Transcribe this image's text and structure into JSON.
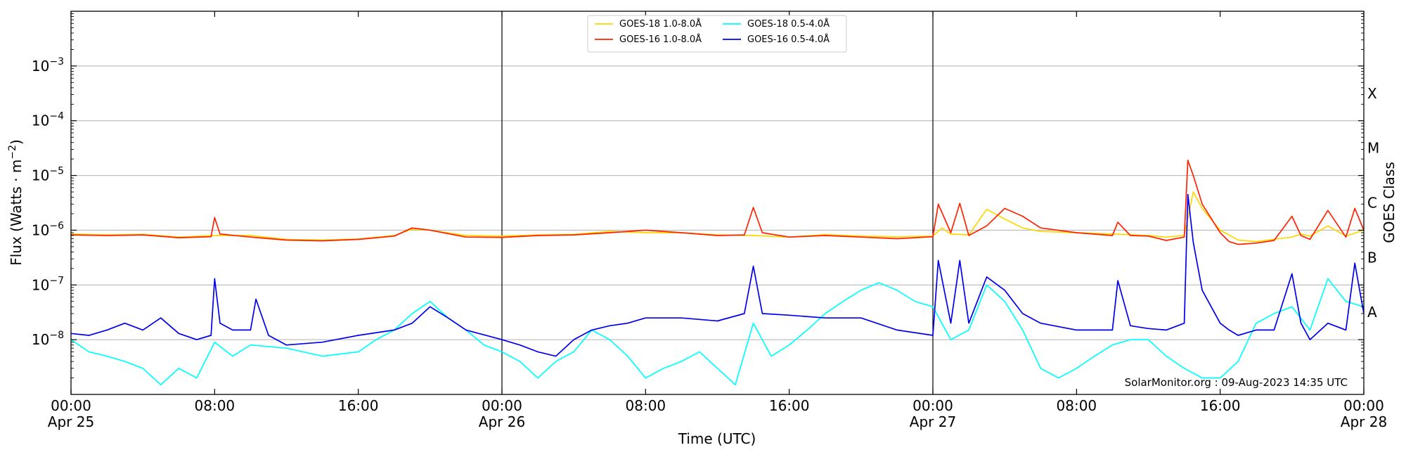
{
  "chart_data": {
    "type": "line",
    "xlabel": "Time (UTC)",
    "ylabel": "Flux (Watts · m",
    "ylabel_sup": "−2",
    "ylabel_close": ")",
    "y2label": "GOES Class",
    "xlim_hours": [
      0,
      72
    ],
    "ylim": [
      1e-09,
      0.01
    ],
    "yscale": "log",
    "y_ticks": [
      {
        "value": 1e-08,
        "base": "10",
        "exp": "−8"
      },
      {
        "value": 1e-07,
        "base": "10",
        "exp": "−7"
      },
      {
        "value": 1e-06,
        "base": "10",
        "exp": "−6"
      },
      {
        "value": 1e-05,
        "base": "10",
        "exp": "−5"
      },
      {
        "value": 0.0001,
        "base": "10",
        "exp": "−4"
      },
      {
        "value": 0.001,
        "base": "10",
        "exp": "−3"
      }
    ],
    "x_ticks": [
      {
        "hour": 0,
        "line1": "00:00",
        "line2": "Apr 25"
      },
      {
        "hour": 8,
        "line1": "08:00",
        "line2": ""
      },
      {
        "hour": 16,
        "line1": "16:00",
        "line2": ""
      },
      {
        "hour": 24,
        "line1": "00:00",
        "line2": "Apr 26"
      },
      {
        "hour": 32,
        "line1": "08:00",
        "line2": ""
      },
      {
        "hour": 40,
        "line1": "16:00",
        "line2": ""
      },
      {
        "hour": 48,
        "line1": "00:00",
        "line2": "Apr 27"
      },
      {
        "hour": 56,
        "line1": "08:00",
        "line2": ""
      },
      {
        "hour": 64,
        "line1": "16:00",
        "line2": ""
      },
      {
        "hour": 72,
        "line1": "00:00",
        "line2": "Apr 28"
      }
    ],
    "day_boundaries_hours": [
      24,
      48
    ],
    "goes_classes": [
      {
        "label": "A",
        "flux": 3.16e-08
      },
      {
        "label": "B",
        "flux": 3.16e-07
      },
      {
        "label": "C",
        "flux": 3.16e-06
      },
      {
        "label": "M",
        "flux": 3.16e-05
      },
      {
        "label": "X",
        "flux": 0.000316
      }
    ],
    "grid": "horizontal at decades",
    "legend_placement": "top-center",
    "annotation": "SolarMonitor.org : 09-Aug-2023 14:35 UTC",
    "series": [
      {
        "name": "GOES-18 1.0-8.0Å",
        "color": "#FFD700",
        "x": [
          0,
          2,
          4,
          6,
          8,
          10,
          12,
          14,
          16,
          18,
          19,
          20,
          22,
          24,
          26,
          28,
          30,
          32,
          34,
          36,
          38,
          40,
          42,
          44,
          46,
          48,
          48.5,
          49,
          50,
          51,
          52,
          53,
          54,
          56,
          58,
          60,
          61,
          62,
          62.5,
          63,
          64,
          65,
          66,
          68,
          68.5,
          69,
          70,
          71,
          72
        ],
        "y": [
          8.5e-07,
          8.2e-07,
          8.4e-07,
          7.5e-07,
          8e-07,
          8e-07,
          6.8e-07,
          6.6e-07,
          6.9e-07,
          8e-07,
          1.05e-06,
          1e-06,
          8e-07,
          7.8e-07,
          8.2e-07,
          8.4e-07,
          9.5e-07,
          9e-07,
          9e-07,
          8.2e-07,
          8e-07,
          7.5e-07,
          8.3e-07,
          7.8e-07,
          7.6e-07,
          7.8e-07,
          1.1e-06,
          8.5e-07,
          8.2e-07,
          2.4e-06,
          1.6e-06,
          1.1e-06,
          9.5e-07,
          9e-07,
          8.5e-07,
          8e-07,
          7.5e-07,
          8e-07,
          5e-06,
          2.5e-06,
          1e-06,
          6.6e-07,
          6.2e-07,
          7.5e-07,
          8.5e-07,
          7.8e-07,
          1.2e-06,
          7.8e-07,
          1e-06
        ]
      },
      {
        "name": "GOES-16 1.0-8.0Å",
        "color": "#FF2200",
        "x": [
          0,
          2,
          4,
          6,
          7.8,
          8,
          8.3,
          10,
          12,
          14,
          16,
          18,
          19,
          20,
          22,
          24,
          26,
          28,
          30,
          32,
          34,
          36,
          37.5,
          38,
          38.5,
          40,
          42,
          44,
          46,
          48,
          48.3,
          49,
          49.5,
          50,
          51,
          52,
          53,
          54,
          56,
          58,
          58.3,
          59,
          60,
          61,
          62,
          62.2,
          62.5,
          63,
          64,
          64.5,
          65,
          66,
          67,
          68,
          68.5,
          69,
          70,
          71,
          71.5,
          72
        ],
        "y": [
          8.2e-07,
          8e-07,
          8.2e-07,
          7.3e-07,
          7.6e-07,
          1.7e-06,
          8.5e-07,
          7.5e-07,
          6.6e-07,
          6.4e-07,
          6.8e-07,
          7.8e-07,
          1.1e-06,
          1e-06,
          7.5e-07,
          7.4e-07,
          8e-07,
          8.2e-07,
          9e-07,
          1e-06,
          9e-07,
          8e-07,
          8.2e-07,
          2.6e-06,
          9e-07,
          7.5e-07,
          8e-07,
          7.5e-07,
          7e-07,
          7.6e-07,
          3e-06,
          9e-07,
          3.1e-06,
          8e-07,
          1.2e-06,
          2.5e-06,
          1.8e-06,
          1.1e-06,
          9e-07,
          8e-07,
          1.4e-06,
          8e-07,
          7.8e-07,
          6.5e-07,
          7.5e-07,
          1.9e-05,
          1e-05,
          3e-06,
          9e-07,
          6.2e-07,
          5.5e-07,
          5.8e-07,
          6.5e-07,
          1.8e-06,
          8e-07,
          6.8e-07,
          2.3e-06,
          7.5e-07,
          2.5e-06,
          1e-06
        ]
      },
      {
        "name": "GOES-18 0.5-4.0Å",
        "color": "#00FFFF",
        "x": [
          0,
          1,
          2,
          3,
          4,
          5,
          6,
          7,
          8,
          9,
          10,
          12,
          14,
          16,
          17,
          18,
          19,
          20,
          21,
          22,
          23,
          24,
          25,
          26,
          27,
          28,
          29,
          30,
          31,
          32,
          33,
          34,
          35,
          36,
          37,
          38,
          39,
          40,
          41,
          42,
          43,
          44,
          45,
          46,
          47,
          48,
          49,
          50,
          51,
          52,
          53,
          54,
          55,
          56,
          57,
          58,
          59,
          60,
          61,
          62,
          63,
          64,
          65,
          66,
          67,
          68,
          69,
          70,
          71,
          72
        ],
        "y": [
          1e-08,
          6e-09,
          5e-09,
          4e-09,
          3e-09,
          1.5e-09,
          3e-09,
          2e-09,
          9e-09,
          5e-09,
          8e-09,
          7e-09,
          5e-09,
          6e-09,
          1e-08,
          1.5e-08,
          3e-08,
          5e-08,
          2.5e-08,
          1.5e-08,
          8e-09,
          6e-09,
          4e-09,
          2e-09,
          4e-09,
          6e-09,
          1.5e-08,
          1e-08,
          5e-09,
          2e-09,
          3e-09,
          4e-09,
          6e-09,
          3e-09,
          1.5e-09,
          2e-08,
          5e-09,
          8e-09,
          1.5e-08,
          3e-08,
          5e-08,
          8e-08,
          1.1e-07,
          8e-08,
          5e-08,
          4e-08,
          1e-08,
          1.5e-08,
          1e-07,
          5e-08,
          1.5e-08,
          3e-09,
          2e-09,
          3e-09,
          5e-09,
          8e-09,
          1e-08,
          1e-08,
          5e-09,
          3e-09,
          2e-09,
          2e-09,
          4e-09,
          2e-08,
          3e-08,
          4e-08,
          1.5e-08,
          1.3e-07,
          5e-08,
          4e-08
        ]
      },
      {
        "name": "GOES-16 0.5-4.0Å",
        "color": "#0000EE",
        "x": [
          0,
          1,
          2,
          3,
          4,
          5,
          6,
          7,
          7.8,
          8,
          8.3,
          9,
          10,
          10.3,
          11,
          12,
          14,
          16,
          18,
          19,
          20,
          21,
          22,
          24,
          25,
          26,
          27,
          28,
          29,
          30,
          31,
          32,
          34,
          36,
          37.5,
          38,
          38.5,
          40,
          42,
          44,
          46,
          48,
          48.3,
          49,
          49.5,
          50,
          51,
          52,
          53,
          54,
          56,
          58,
          58.3,
          59,
          60,
          61,
          62,
          62.2,
          62.5,
          63,
          64,
          64.5,
          65,
          66,
          67,
          68,
          68.5,
          69,
          70,
          71,
          71.5,
          72
        ],
        "y": [
          1.3e-08,
          1.2e-08,
          1.5e-08,
          2e-08,
          1.5e-08,
          2.5e-08,
          1.3e-08,
          1e-08,
          1.2e-08,
          1.3e-07,
          2e-08,
          1.5e-08,
          1.5e-08,
          5.5e-08,
          1.2e-08,
          8e-09,
          9e-09,
          1.2e-08,
          1.5e-08,
          2e-08,
          4e-08,
          2.5e-08,
          1.5e-08,
          1e-08,
          8e-09,
          6e-09,
          5e-09,
          1e-08,
          1.5e-08,
          1.8e-08,
          2e-08,
          2.5e-08,
          2.5e-08,
          2.2e-08,
          3e-08,
          2.2e-07,
          3e-08,
          2.8e-08,
          2.5e-08,
          2.5e-08,
          1.5e-08,
          1.2e-08,
          2.8e-07,
          2e-08,
          2.8e-07,
          2e-08,
          1.4e-07,
          8e-08,
          3e-08,
          2e-08,
          1.5e-08,
          1.5e-08,
          1.2e-07,
          1.8e-08,
          1.6e-08,
          1.5e-08,
          2e-08,
          4.5e-06,
          6e-07,
          8e-08,
          2e-08,
          1.5e-08,
          1.2e-08,
          1.5e-08,
          1.5e-08,
          1.6e-07,
          2e-08,
          1e-08,
          2e-08,
          1.5e-08,
          2.5e-07,
          3e-08
        ]
      }
    ]
  }
}
